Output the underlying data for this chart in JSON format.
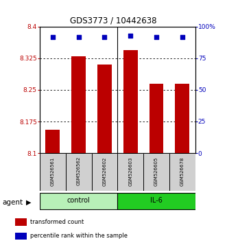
{
  "title": "GDS3773 / 10442638",
  "samples": [
    "GSM526561",
    "GSM526562",
    "GSM526602",
    "GSM526603",
    "GSM526605",
    "GSM526678"
  ],
  "bar_values": [
    8.155,
    8.33,
    8.31,
    8.345,
    8.265,
    8.265
  ],
  "percentile_values": [
    92,
    92,
    92,
    93,
    92,
    92
  ],
  "ylim_left": [
    8.1,
    8.4
  ],
  "ylim_right": [
    0,
    100
  ],
  "yticks_left": [
    8.1,
    8.175,
    8.25,
    8.325,
    8.4
  ],
  "yticks_right": [
    0,
    25,
    50,
    75,
    100
  ],
  "ytick_labels_left": [
    "8.1",
    "8.175",
    "8.25",
    "8.325",
    "8.4"
  ],
  "ytick_labels_right": [
    "0",
    "25",
    "50",
    "75",
    "100%"
  ],
  "bar_color": "#bb0000",
  "percentile_color": "#0000bb",
  "bar_bottom": 8.1,
  "groups": [
    {
      "label": "control",
      "indices": [
        0,
        1,
        2
      ],
      "color": "#b8f0b8"
    },
    {
      "label": "IL-6",
      "indices": [
        3,
        4,
        5
      ],
      "color": "#22cc22"
    }
  ],
  "agent_label": "agent",
  "legend_items": [
    {
      "label": "transformed count",
      "color": "#bb0000"
    },
    {
      "label": "percentile rank within the sample",
      "color": "#0000bb"
    }
  ],
  "bar_width": 0.55,
  "title_fontsize": 8.5,
  "tick_fontsize": 6.5,
  "sample_fontsize": 5.0,
  "group_fontsize": 7.0,
  "legend_fontsize": 6.0,
  "agent_fontsize": 7.5
}
